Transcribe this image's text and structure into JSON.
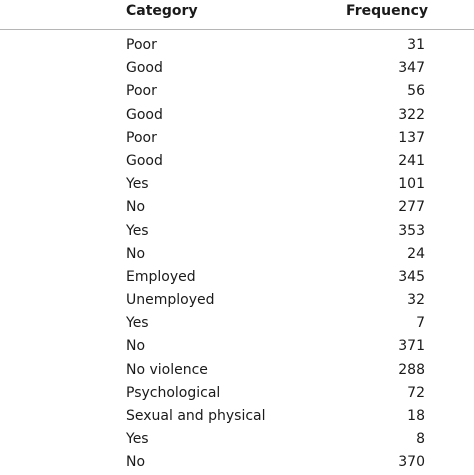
{
  "table": {
    "headers": {
      "category": "Category",
      "frequency": "Frequency"
    },
    "rows": [
      {
        "category": "Poor",
        "frequency": "31"
      },
      {
        "category": "Good",
        "frequency": "347"
      },
      {
        "category": "Poor",
        "frequency": "56"
      },
      {
        "category": "Good",
        "frequency": "322"
      },
      {
        "category": "Poor",
        "frequency": "137"
      },
      {
        "category": "Good",
        "frequency": "241"
      },
      {
        "category": "Yes",
        "frequency": "101"
      },
      {
        "category": "No",
        "frequency": "277"
      },
      {
        "category": "Yes",
        "frequency": "353"
      },
      {
        "category": "No",
        "frequency": "24"
      },
      {
        "category": "Employed",
        "frequency": "345"
      },
      {
        "category": "Unemployed",
        "frequency": "32"
      },
      {
        "category": "Yes",
        "frequency": "7"
      },
      {
        "category": "No",
        "frequency": "371"
      },
      {
        "category": "No violence",
        "frequency": "288"
      },
      {
        "category": "Psychological",
        "frequency": "72"
      },
      {
        "category": "Sexual and physical",
        "frequency": "18"
      },
      {
        "category": "Yes",
        "frequency": "8"
      },
      {
        "category": "No",
        "frequency": "370"
      }
    ]
  }
}
